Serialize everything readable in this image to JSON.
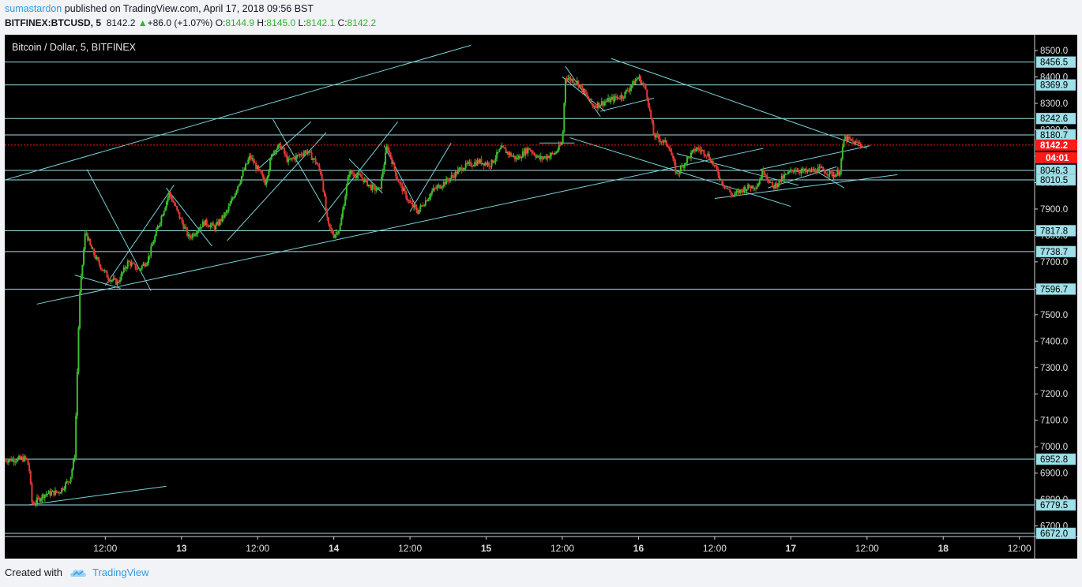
{
  "header": {
    "author": "sumastardon",
    "published_text": "published on TradingView.com, April 17, 2018 09:56 BST",
    "symbol": "BITFINEX:BTCUSD, 5",
    "last": "8142.2",
    "change_arrow": "▲",
    "change": "+86.0 (+1.07%)",
    "o_label": "O:",
    "o_value": "8144.9",
    "h_label": "H:",
    "h_value": "8145.0",
    "l_label": "L:",
    "l_value": "8142.1",
    "c_label": "C:",
    "c_value": "8142.2"
  },
  "chart_title": "Bitcoin / Dollar, 5, BITFINEX",
  "footer": {
    "created_with": "Created with",
    "brand": "TradingView",
    "logo_icon": "tradingview-cloud-icon"
  },
  "colors": {
    "up": "#3cbf2f",
    "down": "#e53935",
    "line": "#79d2d8",
    "hline": "#9fdfe8",
    "price_red": "#ff1a1a"
  },
  "chart_data": {
    "type": "candlestick",
    "title": "Bitcoin / Dollar, 5, BITFINEX",
    "ylim": [
      6660,
      8560
    ],
    "y_ticks": [
      "6700.0",
      "6800.0",
      "6900.0",
      "7000.0",
      "7100.0",
      "7200.0",
      "7300.0",
      "7400.0",
      "7500.0",
      "7600.0",
      "7700.0",
      "7800.0",
      "7900.0",
      "8000.0",
      "8100.0",
      "8200.0",
      "8300.0",
      "8400.0",
      "8500.0"
    ],
    "x_ticks": [
      "12:00",
      "13",
      "12:00",
      "14",
      "12:00",
      "15",
      "12:00",
      "16",
      "12:00",
      "17",
      "12:00",
      "18",
      "12:00"
    ],
    "x_tick_positions": [
      0.5,
      1,
      1.5,
      2,
      2.5,
      3,
      3.5,
      4,
      4.5,
      5,
      5.5,
      6,
      6.5
    ],
    "x_range": [
      -0.16,
      6.6
    ],
    "horizontal_levels": [
      8456.5,
      8369.9,
      8242.6,
      8180.7,
      8046.3,
      8010.5,
      7817.8,
      7738.7,
      7596.7,
      6952.8,
      6779.5,
      6672.0
    ],
    "current_price": {
      "value": 8142.2,
      "label": "8142.2",
      "countdown": "04:01"
    },
    "price_path": [
      [
        -0.16,
        6950
      ],
      [
        -0.02,
        6955
      ],
      [
        0.0,
        6920
      ],
      [
        0.02,
        6780
      ],
      [
        0.1,
        6820
      ],
      [
        0.2,
        6830
      ],
      [
        0.27,
        6880
      ],
      [
        0.3,
        6970
      ],
      [
        0.33,
        7560
      ],
      [
        0.37,
        7820
      ],
      [
        0.4,
        7760
      ],
      [
        0.45,
        7700
      ],
      [
        0.52,
        7640
      ],
      [
        0.58,
        7620
      ],
      [
        0.65,
        7700
      ],
      [
        0.72,
        7670
      ],
      [
        0.78,
        7710
      ],
      [
        0.85,
        7840
      ],
      [
        0.92,
        7960
      ],
      [
        0.98,
        7880
      ],
      [
        1.05,
        7790
      ],
      [
        1.15,
        7850
      ],
      [
        1.22,
        7830
      ],
      [
        1.3,
        7890
      ],
      [
        1.37,
        7990
      ],
      [
        1.45,
        8100
      ],
      [
        1.5,
        8050
      ],
      [
        1.55,
        8000
      ],
      [
        1.6,
        8120
      ],
      [
        1.65,
        8140
      ],
      [
        1.7,
        8080
      ],
      [
        1.76,
        8100
      ],
      [
        1.82,
        8120
      ],
      [
        1.88,
        8080
      ],
      [
        1.92,
        8030
      ],
      [
        1.96,
        7840
      ],
      [
        2.0,
        7800
      ],
      [
        2.04,
        7830
      ],
      [
        2.1,
        8040
      ],
      [
        2.18,
        8020
      ],
      [
        2.25,
        7980
      ],
      [
        2.3,
        7970
      ],
      [
        2.35,
        8140
      ],
      [
        2.42,
        8010
      ],
      [
        2.5,
        7920
      ],
      [
        2.55,
        7890
      ],
      [
        2.65,
        7970
      ],
      [
        2.75,
        8010
      ],
      [
        2.85,
        8060
      ],
      [
        2.95,
        8080
      ],
      [
        3.03,
        8070
      ],
      [
        3.1,
        8130
      ],
      [
        3.2,
        8090
      ],
      [
        3.28,
        8130
      ],
      [
        3.35,
        8090
      ],
      [
        3.45,
        8110
      ],
      [
        3.5,
        8150
      ],
      [
        3.52,
        8400
      ],
      [
        3.6,
        8380
      ],
      [
        3.7,
        8290
      ],
      [
        3.8,
        8310
      ],
      [
        3.9,
        8330
      ],
      [
        4.0,
        8400
      ],
      [
        4.05,
        8350
      ],
      [
        4.1,
        8180
      ],
      [
        4.2,
        8140
      ],
      [
        4.25,
        8030
      ],
      [
        4.32,
        8090
      ],
      [
        4.38,
        8130
      ],
      [
        4.45,
        8110
      ],
      [
        4.5,
        8060
      ],
      [
        4.55,
        8000
      ],
      [
        4.62,
        7950
      ],
      [
        4.7,
        7980
      ],
      [
        4.78,
        7990
      ],
      [
        4.82,
        8050
      ],
      [
        4.88,
        7980
      ],
      [
        4.95,
        8020
      ],
      [
        5.02,
        8050
      ],
      [
        5.1,
        8040
      ],
      [
        5.2,
        8050
      ],
      [
        5.28,
        8030
      ],
      [
        5.32,
        8040
      ],
      [
        5.35,
        8170
      ],
      [
        5.42,
        8150
      ],
      [
        5.47,
        8142.2
      ]
    ],
    "trend_lines": [
      [
        [
          -0.16,
          8010
        ],
        [
          2.9,
          8520
        ]
      ],
      [
        [
          0.05,
          7540
        ],
        [
          4.82,
          8130
        ]
      ],
      [
        [
          0.0,
          6780
        ],
        [
          0.9,
          6850
        ]
      ],
      [
        [
          0.38,
          8050
        ],
        [
          0.8,
          7590
        ]
      ],
      [
        [
          0.3,
          7650
        ],
        [
          0.6,
          7600
        ]
      ],
      [
        [
          0.5,
          7610
        ],
        [
          0.95,
          7990
        ]
      ],
      [
        [
          0.9,
          7980
        ],
        [
          1.2,
          7760
        ]
      ],
      [
        [
          1.3,
          7780
        ],
        [
          1.95,
          8190
        ]
      ],
      [
        [
          1.6,
          8240
        ],
        [
          1.95,
          7890
        ]
      ],
      [
        [
          1.5,
          8050
        ],
        [
          1.85,
          8230
        ]
      ],
      [
        [
          1.9,
          7850
        ],
        [
          2.42,
          8230
        ]
      ],
      [
        [
          2.1,
          8090
        ],
        [
          2.32,
          7960
        ]
      ],
      [
        [
          2.33,
          8140
        ],
        [
          2.55,
          7900
        ]
      ],
      [
        [
          2.5,
          7890
        ],
        [
          2.77,
          8150
        ]
      ],
      [
        [
          3.35,
          8150
        ],
        [
          3.58,
          8150
        ]
      ],
      [
        [
          3.5,
          8400
        ],
        [
          3.78,
          8270
        ]
      ],
      [
        [
          3.52,
          8440
        ],
        [
          3.75,
          8250
        ]
      ],
      [
        [
          3.75,
          8270
        ],
        [
          4.1,
          8320
        ]
      ],
      [
        [
          3.82,
          8470
        ],
        [
          5.5,
          8130
        ]
      ],
      [
        [
          3.55,
          8170
        ],
        [
          5.0,
          7910
        ]
      ],
      [
        [
          4.25,
          8110
        ],
        [
          5.05,
          7990
        ]
      ],
      [
        [
          4.5,
          7940
        ],
        [
          5.7,
          8030
        ]
      ],
      [
        [
          4.8,
          8050
        ],
        [
          5.52,
          8140
        ]
      ],
      [
        [
          4.85,
          7980
        ],
        [
          5.3,
          8060
        ]
      ],
      [
        [
          5.15,
          8050
        ],
        [
          5.35,
          7980
        ]
      ]
    ]
  }
}
